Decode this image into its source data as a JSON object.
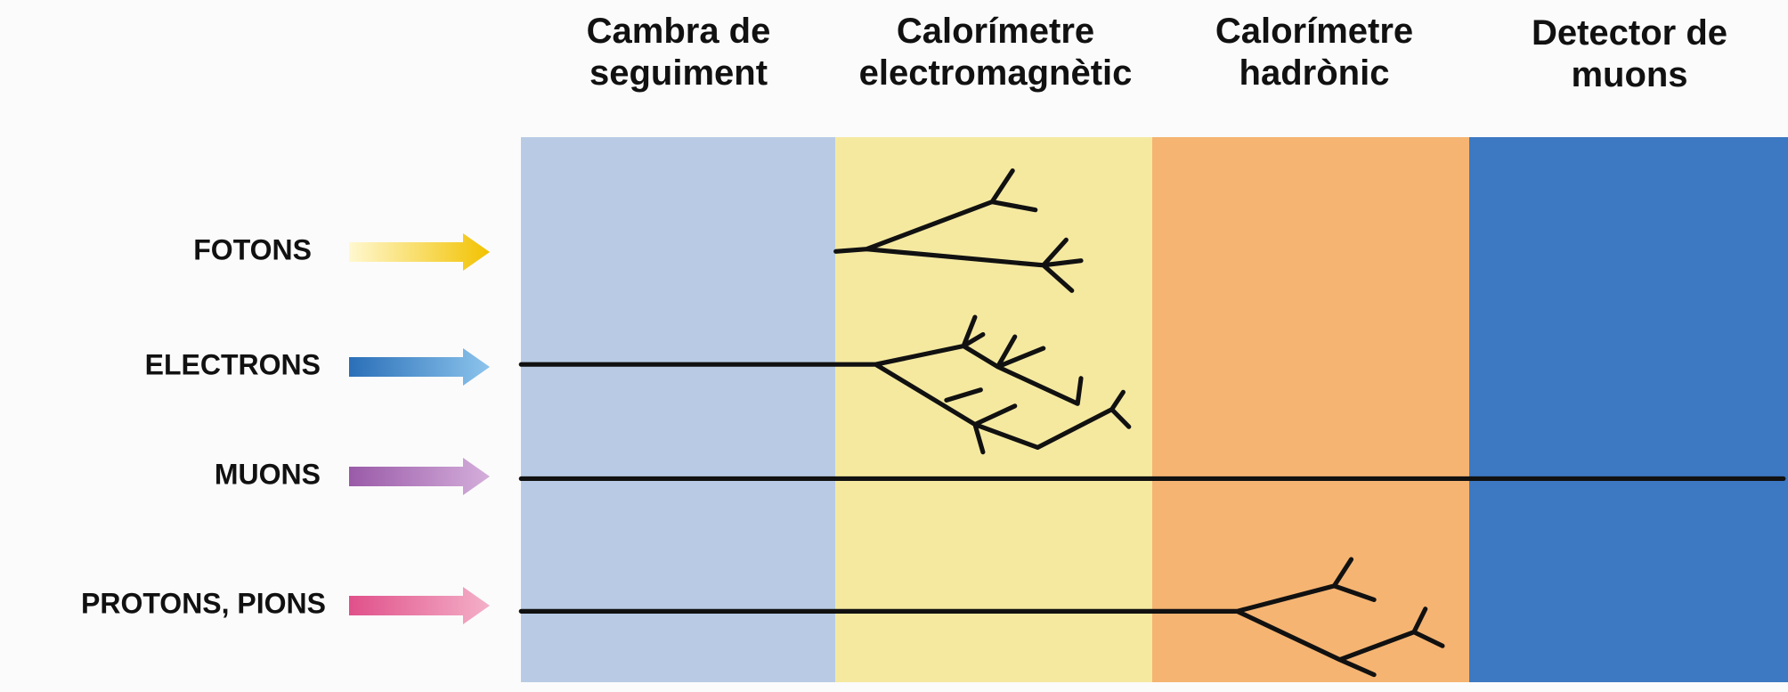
{
  "columns": [
    {
      "lines": [
        "Cambra de",
        "seguiment"
      ]
    },
    {
      "lines": [
        "Calorímetre",
        "electromagnètic"
      ]
    },
    {
      "lines": [
        "Calorímetre",
        "hadrònic"
      ]
    },
    {
      "lines": [
        "Detector de",
        "muons"
      ]
    }
  ],
  "particles": [
    "FOTONS",
    "ELECTRONS",
    "MUONS",
    "PROTONS, PIONS"
  ]
}
